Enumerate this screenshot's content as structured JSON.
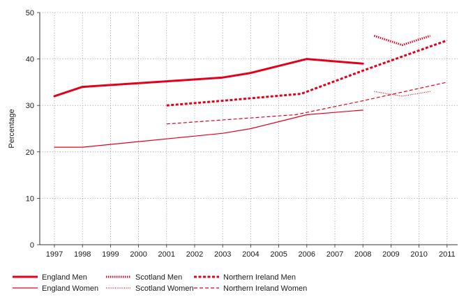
{
  "chart_data": {
    "type": "line",
    "ylabel": "Percentage",
    "xlabel": "",
    "ylim": [
      0,
      50
    ],
    "yticks": [
      0,
      10,
      20,
      30,
      40,
      50
    ],
    "categories": [
      "1997",
      "1998",
      "1999",
      "2000",
      "2001",
      "2002",
      "2003",
      "2004",
      "2005",
      "2006",
      "2007",
      "2008",
      "2009",
      "2010",
      "2011"
    ],
    "grid": "dotted, both axes",
    "legend_position": "bottom",
    "series": [
      {
        "name": "England Men",
        "color": "#e3001b",
        "style": "solid-thick",
        "points": [
          [
            1997,
            32
          ],
          [
            1998,
            34
          ],
          [
            2001,
            35.2
          ],
          [
            2003,
            36
          ],
          [
            2004,
            37
          ],
          [
            2005,
            38.5
          ],
          [
            2006,
            40
          ],
          [
            2008,
            39
          ]
        ]
      },
      {
        "name": "Scotland Men",
        "color": "#e3001b",
        "style": "dotted-thick",
        "points": [
          [
            2008.4,
            45
          ],
          [
            2009.4,
            43
          ],
          [
            2010.4,
            45
          ]
        ]
      },
      {
        "name": "Northern Ireland Men",
        "color": "#e3001b",
        "style": "dashed-thick",
        "points": [
          [
            2001,
            30
          ],
          [
            2003,
            31
          ],
          [
            2005.8,
            32.5
          ],
          [
            2008,
            37.5
          ],
          [
            2011,
            44
          ]
        ]
      },
      {
        "name": "England Women",
        "color": "#e3001b",
        "style": "solid-thin",
        "points": [
          [
            1997,
            21
          ],
          [
            1998,
            21
          ],
          [
            2000,
            22.2
          ],
          [
            2002,
            23.4
          ],
          [
            2003,
            24
          ],
          [
            2004,
            25
          ],
          [
            2005,
            26.5
          ],
          [
            2006,
            28
          ],
          [
            2007,
            28.5
          ],
          [
            2008,
            29
          ]
        ]
      },
      {
        "name": "Scotland Women",
        "color": "#e3001b",
        "style": "dotted-thin",
        "points": [
          [
            2008.4,
            33
          ],
          [
            2009.4,
            32
          ],
          [
            2010.4,
            33
          ]
        ]
      },
      {
        "name": "Northern Ireland Women",
        "color": "#e3001b",
        "style": "dashed-thin",
        "points": [
          [
            2001,
            26
          ],
          [
            2005.6,
            28
          ],
          [
            2008,
            31
          ],
          [
            2011,
            35
          ]
        ]
      }
    ]
  }
}
